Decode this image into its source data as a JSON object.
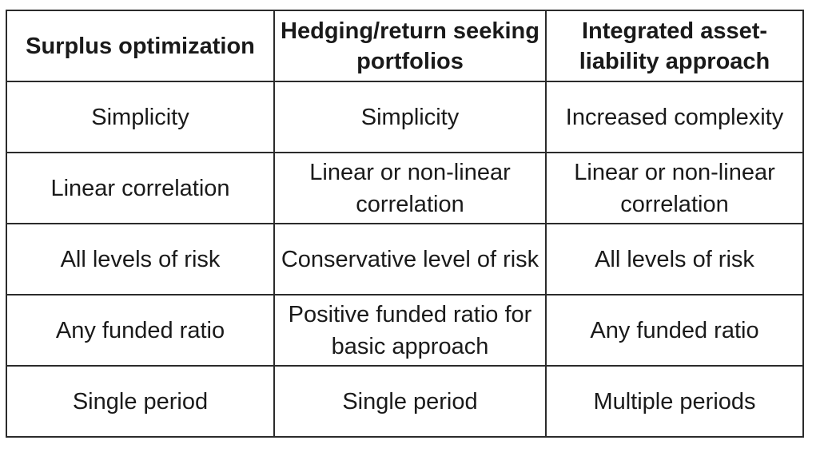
{
  "table": {
    "headers": [
      "Surplus optimization",
      "Hedging/return seeking portfolios",
      "Integrated asset-liability approach"
    ],
    "rows": [
      [
        "Simplicity",
        "Simplicity",
        "Increased complexity"
      ],
      [
        "Linear correlation",
        "Linear or non-linear correlation",
        "Linear or non-linear correlation"
      ],
      [
        "All levels of risk",
        "Conservative level of risk",
        "All levels of risk"
      ],
      [
        "Any funded ratio",
        "Positive funded ratio for basic approach",
        "Any funded ratio"
      ],
      [
        "Single period",
        "Single period",
        "Multiple periods"
      ]
    ]
  }
}
